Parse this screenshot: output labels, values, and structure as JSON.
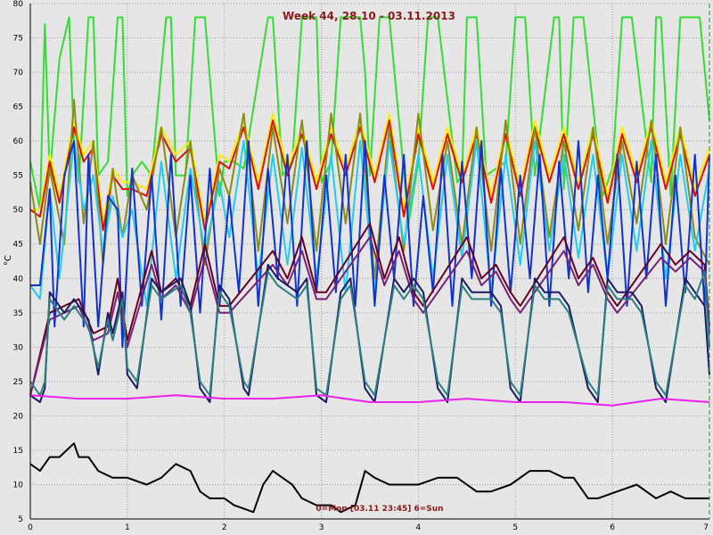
{
  "chart_data": {
    "type": "line",
    "title": "Week 44, 28.10 - 03.11.2013",
    "footer": "0=Mon [03.11 23:45] 6=Sun",
    "ylabel": "°C",
    "xlim": [
      0,
      7
    ],
    "ylim": [
      5,
      80
    ],
    "xticks": [
      "0",
      "1",
      "2",
      "3",
      "4",
      "5",
      "6",
      "7"
    ],
    "yticks": [
      "5",
      "10",
      "15",
      "20",
      "25",
      "30",
      "35",
      "40",
      "45",
      "50",
      "55",
      "60",
      "65",
      "70",
      "75",
      "80"
    ],
    "grid": true,
    "series": [
      {
        "color": "#33dd33",
        "x": [
          0,
          0.1,
          0.15,
          0.2,
          0.3,
          0.4,
          0.45,
          0.5,
          0.6,
          0.65,
          0.7,
          0.8,
          0.9,
          0.95,
          1.0,
          1.05,
          1.15,
          1.25,
          1.4,
          1.45,
          1.5,
          1.6,
          1.7,
          1.8,
          1.95,
          2.0,
          2.1,
          2.2,
          2.45,
          2.5,
          2.6,
          2.7,
          2.8,
          2.95,
          3.0,
          3.1,
          3.2,
          3.4,
          3.45,
          3.5,
          3.6,
          3.7,
          3.9,
          4.0,
          4.1,
          4.2,
          4.4,
          4.45,
          4.5,
          4.6,
          4.7,
          4.9,
          5.0,
          5.1,
          5.2,
          5.4,
          5.45,
          5.5,
          5.6,
          5.7,
          5.9,
          6.0,
          6.1,
          6.2,
          6.4,
          6.45,
          6.5,
          6.6,
          6.7,
          6.9,
          7.0
        ],
        "y": [
          57,
          50,
          77,
          55,
          72,
          78,
          60,
          54,
          78,
          78,
          55,
          57,
          78,
          78,
          52,
          55,
          57,
          55,
          78,
          78,
          55,
          55,
          78,
          78,
          52,
          57,
          57,
          56,
          78,
          78,
          55,
          57,
          78,
          78,
          54,
          57,
          78,
          78,
          70,
          55,
          78,
          78,
          48,
          57,
          78,
          78,
          54,
          55,
          78,
          78,
          55,
          57,
          78,
          78,
          55,
          78,
          78,
          53,
          78,
          78,
          52,
          56,
          78,
          78,
          54,
          78,
          78,
          52,
          78,
          78,
          63
        ]
      },
      {
        "color": "#ffee00",
        "x": [
          0,
          0.1,
          0.2,
          0.3,
          0.45,
          0.55,
          0.65,
          0.75,
          0.85,
          0.95,
          1.05,
          1.2,
          1.35,
          1.5,
          1.65,
          1.8,
          1.95,
          2.05,
          2.2,
          2.35,
          2.5,
          2.65,
          2.8,
          2.95,
          3.1,
          3.25,
          3.4,
          3.55,
          3.7,
          3.85,
          4.0,
          4.15,
          4.3,
          4.45,
          4.6,
          4.75,
          4.9,
          5.05,
          5.2,
          5.35,
          5.5,
          5.65,
          5.8,
          5.95,
          6.1,
          6.25,
          6.4,
          6.55,
          6.7,
          6.85,
          7.0
        ],
        "y": [
          50,
          50,
          58,
          52,
          63,
          58,
          60,
          48,
          56,
          54,
          54,
          53,
          62,
          58,
          60,
          48,
          58,
          57,
          63,
          54,
          64,
          56,
          62,
          54,
          62,
          56,
          63,
          55,
          64,
          50,
          62,
          54,
          62,
          55,
          62,
          52,
          62,
          53,
          63,
          55,
          62,
          54,
          62,
          52,
          62,
          55,
          63,
          54,
          62,
          53,
          59
        ]
      },
      {
        "color": "#dd1100",
        "x": [
          0,
          0.1,
          0.2,
          0.3,
          0.45,
          0.55,
          0.65,
          0.75,
          0.85,
          0.95,
          1.05,
          1.2,
          1.35,
          1.5,
          1.65,
          1.8,
          1.95,
          2.05,
          2.2,
          2.35,
          2.5,
          2.65,
          2.8,
          2.95,
          3.1,
          3.25,
          3.4,
          3.55,
          3.7,
          3.85,
          4.0,
          4.15,
          4.3,
          4.45,
          4.6,
          4.75,
          4.9,
          5.05,
          5.2,
          5.35,
          5.5,
          5.65,
          5.8,
          5.95,
          6.1,
          6.25,
          6.4,
          6.55,
          6.7,
          6.85,
          7.0
        ],
        "y": [
          50,
          49,
          57,
          51,
          62,
          57,
          59,
          47,
          55,
          53,
          53,
          52,
          61,
          57,
          59,
          47,
          57,
          56,
          62,
          53,
          63,
          55,
          61,
          53,
          61,
          55,
          62,
          54,
          63,
          49,
          61,
          53,
          61,
          54,
          61,
          51,
          61,
          52,
          62,
          54,
          61,
          53,
          61,
          51,
          61,
          54,
          62,
          53,
          61,
          52,
          58
        ]
      },
      {
        "color": "#8b8b1a",
        "x": [
          0,
          0.1,
          0.2,
          0.35,
          0.45,
          0.55,
          0.65,
          0.75,
          0.85,
          0.95,
          1.05,
          1.2,
          1.35,
          1.5,
          1.65,
          1.8,
          1.95,
          2.05,
          2.2,
          2.35,
          2.5,
          2.65,
          2.8,
          2.95,
          3.1,
          3.25,
          3.4,
          3.55,
          3.7,
          3.85,
          4.0,
          4.15,
          4.3,
          4.45,
          4.6,
          4.75,
          4.9,
          5.05,
          5.2,
          5.35,
          5.5,
          5.65,
          5.8,
          5.95,
          6.1,
          6.25,
          6.4,
          6.55,
          6.7,
          6.85,
          7.0
        ],
        "y": [
          54,
          45,
          56,
          45,
          66,
          48,
          60,
          42,
          56,
          46,
          55,
          50,
          62,
          46,
          60,
          42,
          56,
          52,
          64,
          44,
          62,
          48,
          63,
          44,
          64,
          48,
          64,
          40,
          62,
          44,
          64,
          47,
          60,
          45,
          62,
          44,
          63,
          45,
          62,
          46,
          60,
          47,
          62,
          45,
          60,
          48,
          63,
          45,
          62,
          46,
          42
        ]
      },
      {
        "color": "#22ccee",
        "x": [
          0,
          0.1,
          0.2,
          0.3,
          0.45,
          0.55,
          0.65,
          0.75,
          0.85,
          0.95,
          1.05,
          1.2,
          1.35,
          1.5,
          1.65,
          1.8,
          1.95,
          2.05,
          2.2,
          2.35,
          2.5,
          2.65,
          2.8,
          2.95,
          3.1,
          3.25,
          3.4,
          3.55,
          3.7,
          3.85,
          4.0,
          4.15,
          4.3,
          4.45,
          4.6,
          4.75,
          4.9,
          5.05,
          5.2,
          5.35,
          5.5,
          5.65,
          5.8,
          5.95,
          6.1,
          6.25,
          6.4,
          6.55,
          6.7,
          6.85,
          7.0
        ],
        "y": [
          39,
          37,
          53,
          40,
          60,
          50,
          55,
          44,
          52,
          46,
          50,
          36,
          57,
          40,
          56,
          44,
          54,
          46,
          60,
          40,
          58,
          42,
          59,
          40,
          58,
          38,
          60,
          38,
          60,
          45,
          58,
          40,
          58,
          43,
          60,
          38,
          58,
          42,
          60,
          44,
          58,
          43,
          58,
          40,
          58,
          44,
          60,
          40,
          58,
          44,
          56
        ]
      },
      {
        "color": "#1133cc",
        "x": [
          0,
          0.1,
          0.2,
          0.25,
          0.35,
          0.45,
          0.55,
          0.6,
          0.7,
          0.8,
          0.9,
          0.95,
          1.05,
          1.15,
          1.25,
          1.35,
          1.45,
          1.55,
          1.65,
          1.75,
          1.85,
          1.95,
          2.05,
          2.15,
          2.25,
          2.35,
          2.45,
          2.55,
          2.65,
          2.75,
          2.85,
          2.95,
          3.05,
          3.15,
          3.25,
          3.35,
          3.45,
          3.55,
          3.65,
          3.75,
          3.85,
          3.95,
          4.05,
          4.15,
          4.25,
          4.35,
          4.45,
          4.55,
          4.65,
          4.75,
          4.85,
          4.95,
          5.05,
          5.15,
          5.25,
          5.35,
          5.45,
          5.55,
          5.65,
          5.75,
          5.85,
          5.95,
          6.05,
          6.15,
          6.25,
          6.35,
          6.45,
          6.55,
          6.65,
          6.75,
          6.85,
          6.95,
          7.0
        ],
        "y": [
          39,
          39,
          53,
          33,
          55,
          60,
          33,
          58,
          33,
          52,
          50,
          30,
          56,
          36,
          55,
          34,
          58,
          36,
          55,
          35,
          56,
          36,
          52,
          38,
          60,
          36,
          56,
          40,
          58,
          36,
          60,
          38,
          55,
          38,
          58,
          36,
          60,
          36,
          55,
          40,
          58,
          36,
          52,
          38,
          58,
          36,
          57,
          40,
          60,
          36,
          56,
          38,
          55,
          40,
          58,
          36,
          57,
          40,
          60,
          38,
          55,
          40,
          58,
          36,
          57,
          40,
          58,
          36,
          55,
          38,
          58,
          36,
          58
        ]
      },
      {
        "color": "#660022",
        "x": [
          0,
          0.2,
          0.35,
          0.5,
          0.65,
          0.8,
          0.9,
          1.0,
          1.25,
          1.35,
          1.5,
          1.65,
          1.8,
          1.95,
          2.05,
          2.5,
          2.65,
          2.8,
          2.95,
          3.05,
          3.5,
          3.65,
          3.8,
          3.95,
          4.05,
          4.5,
          4.65,
          4.8,
          4.95,
          5.05,
          5.5,
          5.65,
          5.8,
          5.95,
          6.05,
          6.5,
          6.65,
          6.8,
          6.95,
          7.0
        ],
        "y": [
          23,
          35,
          36,
          37,
          32,
          33,
          40,
          31,
          44,
          38,
          40,
          36,
          45,
          36,
          36,
          44,
          40,
          46,
          38,
          38,
          48,
          40,
          46,
          38,
          36,
          46,
          40,
          42,
          38,
          36,
          46,
          40,
          43,
          38,
          36,
          45,
          42,
          44,
          42,
          33
        ]
      },
      {
        "color": "#772277",
        "x": [
          0,
          0.2,
          0.35,
          0.5,
          0.65,
          0.8,
          0.9,
          1.0,
          1.25,
          1.35,
          1.5,
          1.65,
          1.8,
          1.95,
          2.05,
          2.5,
          2.65,
          2.8,
          2.95,
          3.05,
          3.5,
          3.65,
          3.8,
          3.95,
          4.05,
          4.5,
          4.65,
          4.8,
          4.95,
          5.05,
          5.5,
          5.65,
          5.8,
          5.95,
          6.05,
          6.5,
          6.65,
          6.8,
          6.95,
          7.0
        ],
        "y": [
          23,
          34,
          35,
          36,
          31,
          32,
          38,
          30,
          42,
          37,
          39,
          35,
          43,
          35,
          35,
          42,
          39,
          44,
          37,
          37,
          46,
          39,
          44,
          37,
          35,
          44,
          39,
          41,
          37,
          35,
          44,
          39,
          42,
          37,
          35,
          43,
          41,
          43,
          41,
          32
        ]
      },
      {
        "color": "#1a1a66",
        "x": [
          0,
          0.1,
          0.15,
          0.2,
          0.35,
          0.45,
          0.6,
          0.7,
          0.8,
          0.85,
          0.95,
          1.0,
          1.1,
          1.25,
          1.35,
          1.55,
          1.65,
          1.75,
          1.85,
          1.95,
          2.05,
          2.2,
          2.25,
          2.45,
          2.55,
          2.75,
          2.85,
          2.95,
          3.05,
          3.2,
          3.3,
          3.45,
          3.55,
          3.75,
          3.85,
          3.95,
          4.05,
          4.2,
          4.3,
          4.45,
          4.55,
          4.75,
          4.85,
          4.95,
          5.05,
          5.2,
          5.3,
          5.45,
          5.55,
          5.75,
          5.85,
          5.95,
          6.05,
          6.2,
          6.3,
          6.45,
          6.55,
          6.75,
          6.85,
          6.95,
          7.0
        ],
        "y": [
          23,
          22,
          24,
          38,
          35,
          37,
          34,
          26,
          35,
          32,
          38,
          26,
          24,
          40,
          38,
          40,
          36,
          24,
          22,
          39,
          37,
          24,
          23,
          42,
          40,
          38,
          40,
          23,
          22,
          38,
          40,
          24,
          22,
          40,
          38,
          40,
          38,
          24,
          22,
          40,
          38,
          38,
          36,
          24,
          22,
          40,
          38,
          38,
          36,
          24,
          22,
          40,
          38,
          38,
          36,
          24,
          22,
          40,
          38,
          36,
          26
        ]
      },
      {
        "color": "#2a8080",
        "x": [
          0,
          0.1,
          0.15,
          0.2,
          0.35,
          0.45,
          0.6,
          0.7,
          0.8,
          0.85,
          0.95,
          1.0,
          1.1,
          1.25,
          1.35,
          1.55,
          1.65,
          1.75,
          1.85,
          1.95,
          2.05,
          2.2,
          2.25,
          2.45,
          2.55,
          2.75,
          2.85,
          2.95,
          3.05,
          3.2,
          3.3,
          3.45,
          3.55,
          3.75,
          3.85,
          3.95,
          4.05,
          4.2,
          4.3,
          4.45,
          4.55,
          4.75,
          4.85,
          4.95,
          5.05,
          5.2,
          5.3,
          5.45,
          5.55,
          5.75,
          5.85,
          5.95,
          6.05,
          6.2,
          6.3,
          6.45,
          6.55,
          6.75,
          6.85,
          6.95,
          7.0
        ],
        "y": [
          25,
          23,
          25,
          37,
          34,
          36,
          33,
          27,
          34,
          31,
          37,
          27,
          25,
          39,
          37,
          39,
          35,
          25,
          23,
          38,
          36,
          25,
          24,
          41,
          39,
          37,
          39,
          24,
          23,
          37,
          39,
          25,
          23,
          39,
          37,
          39,
          37,
          25,
          23,
          39,
          37,
          37,
          35,
          25,
          23,
          39,
          37,
          37,
          35,
          25,
          23,
          39,
          37,
          37,
          35,
          25,
          23,
          39,
          37,
          41,
          30
        ]
      },
      {
        "color": "#ee22ee",
        "x": [
          0,
          0.5,
          1.0,
          1.5,
          2.0,
          2.5,
          3.0,
          3.5,
          4.0,
          4.5,
          5.0,
          5.5,
          6.0,
          6.5,
          7.0
        ],
        "y": [
          23,
          22.5,
          22.5,
          23,
          22.5,
          22.5,
          23,
          22,
          22,
          22.5,
          22,
          22,
          21.5,
          22.5,
          22
        ]
      },
      {
        "color": "#000000",
        "x": [
          0,
          0.1,
          0.2,
          0.3,
          0.45,
          0.5,
          0.6,
          0.7,
          0.85,
          1.0,
          1.2,
          1.35,
          1.5,
          1.65,
          1.75,
          1.85,
          2.0,
          2.1,
          2.3,
          2.4,
          2.5,
          2.6,
          2.7,
          2.8,
          2.95,
          3.1,
          3.2,
          3.35,
          3.45,
          3.55,
          3.7,
          3.85,
          4.0,
          4.2,
          4.4,
          4.6,
          4.75,
          4.95,
          5.15,
          5.35,
          5.5,
          5.6,
          5.75,
          5.85,
          6.05,
          6.25,
          6.45,
          6.6,
          6.75,
          6.9,
          7.0
        ],
        "y": [
          13,
          12,
          14,
          14,
          16,
          14,
          14,
          12,
          11,
          11,
          10,
          11,
          13,
          12,
          9,
          8,
          8,
          7,
          6,
          10,
          12,
          11,
          10,
          8,
          7,
          7,
          6,
          7,
          12,
          11,
          10,
          10,
          10,
          11,
          11,
          9,
          9,
          10,
          12,
          12,
          11,
          11,
          8,
          8,
          9,
          10,
          8,
          9,
          8,
          8,
          8
        ]
      }
    ]
  }
}
